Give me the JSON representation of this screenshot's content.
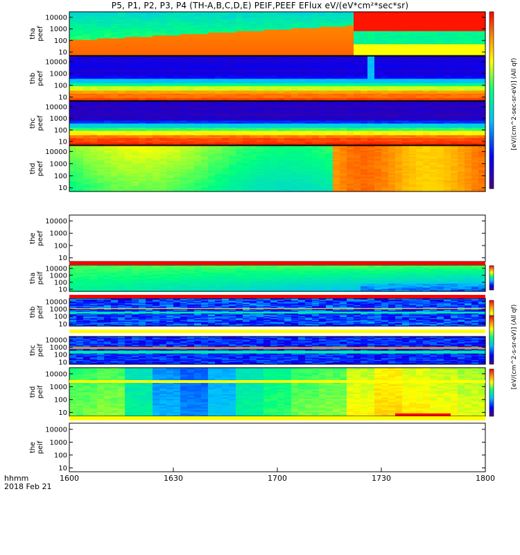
{
  "title": "P5, P1, P2, P3, P4 (TH-A,B,C,D,E) PEIF,PEEF EFlux eV/(eV*cm²*sec*sr)",
  "chart_data": {
    "type": "heatmap",
    "x_label": "hhmm",
    "date_label": "2018 Feb 21",
    "x_ticks": [
      "1600",
      "1630",
      "1700",
      "1730",
      "1800"
    ],
    "x_range": [
      "16:00",
      "18:00"
    ],
    "y_scale": "log",
    "y_ticks": [
      "10",
      "100",
      "1000",
      "10000"
    ],
    "y_range": [
      5,
      30000
    ],
    "colorscale": [
      "#4b0082",
      "#0000ff",
      "#00bfff",
      "#00ff7f",
      "#ffff00",
      "#ff8c00",
      "#ff0000"
    ],
    "panels": [
      {
        "id": "tha_peef",
        "label": "tha\npeef",
        "species": "electron",
        "colorbar": "10^3..10^7",
        "has_data": true
      },
      {
        "id": "thb_peef",
        "label": "thb\npeef",
        "species": "electron",
        "colorbar": "10^3..10^7",
        "has_data": true
      },
      {
        "id": "thc_peef",
        "label": "thc\npeef",
        "species": "electron",
        "colorbar": "10^3..10^7",
        "has_data": true
      },
      {
        "id": "thd_peef",
        "label": "thd\npeef",
        "species": "electron",
        "colorbar": "10^3..10^7",
        "has_data": true
      },
      {
        "id": "the_peef",
        "label": "the\npeef",
        "species": "electron",
        "has_data": false
      },
      {
        "id": "tha_peif",
        "label": "tha\npeif",
        "species": "ion",
        "colorbar": "10^3..10^8",
        "has_data": true
      },
      {
        "id": "thb_peif",
        "label": "thb\npeif",
        "species": "ion",
        "colorbar": "10^3..10^8",
        "has_data": true
      },
      {
        "id": "thc_peif",
        "label": "thc\npeif",
        "species": "ion",
        "colorbar": "10^3..10^8",
        "has_data": true
      },
      {
        "id": "thd_peif",
        "label": "thd\npeif",
        "species": "ion",
        "colorbar": "10^3..10^7",
        "has_data": true
      },
      {
        "id": "the_peif",
        "label": "the\npeif",
        "species": "ion",
        "has_data": false
      }
    ],
    "colorbar_label_peef": "[eV/(cm^2-sec-sr-eV)] (All qf)",
    "colorbar_label_peif": "[eV/(cm^2-s-sr-eV)] (All qf)"
  }
}
